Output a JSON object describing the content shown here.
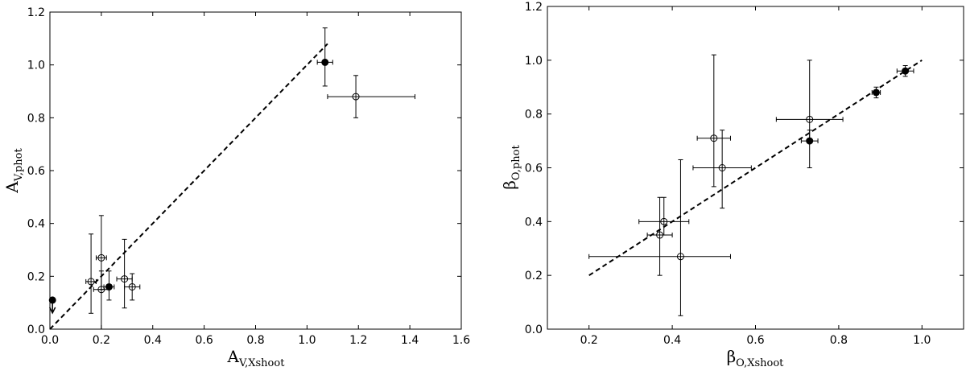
{
  "chart_data": [
    {
      "type": "scatter",
      "xlabel_main": "A",
      "xlabel_sub": "V,Xshoot",
      "ylabel_main": "A",
      "ylabel_sub": "V,phot",
      "xlim": [
        0.0,
        1.6
      ],
      "ylim": [
        0.0,
        1.2
      ],
      "xticks": [
        "0.0",
        "0.2",
        "0.4",
        "0.6",
        "0.8",
        "1.0",
        "1.2",
        "1.4",
        "1.6"
      ],
      "yticks": [
        "0.0",
        "0.2",
        "0.4",
        "0.6",
        "0.8",
        "1.0",
        "1.2"
      ],
      "xtick_values": [
        0.0,
        0.2,
        0.4,
        0.6,
        0.8,
        1.0,
        1.2,
        1.4,
        1.6
      ],
      "ytick_values": [
        0.0,
        0.2,
        0.4,
        0.6,
        0.8,
        1.0,
        1.2
      ],
      "grid": false,
      "fit_line": {
        "x": [
          0.0,
          1.08
        ],
        "y": [
          0.0,
          1.08
        ],
        "style": "dashed"
      },
      "points": [
        {
          "x": 0.01,
          "y": 0.11,
          "filled": true,
          "upper_limit": true
        },
        {
          "x": 0.16,
          "y": 0.18,
          "xerr": 0.02,
          "yerr": [
            0.12,
            0.18
          ],
          "filled": false
        },
        {
          "x": 0.2,
          "y": 0.27,
          "xerr": 0.02,
          "yerr": [
            0.12,
            0.16
          ],
          "filled": false
        },
        {
          "x": 0.2,
          "y": 0.15,
          "xerr": 0.03,
          "yerr": [
            0.15,
            0.07
          ],
          "filled": false
        },
        {
          "x": 0.23,
          "y": 0.16,
          "xerr": 0.02,
          "yerr": [
            0.05,
            0.06
          ],
          "filled": true
        },
        {
          "x": 0.29,
          "y": 0.19,
          "xerr": 0.03,
          "yerr": [
            0.11,
            0.15
          ],
          "filled": false
        },
        {
          "x": 0.32,
          "y": 0.16,
          "xerr": 0.03,
          "yerr": [
            0.05,
            0.05
          ],
          "filled": false
        },
        {
          "x": 1.07,
          "y": 1.01,
          "xerr": 0.03,
          "yerr": [
            0.09,
            0.13
          ],
          "filled": true
        },
        {
          "x": 1.19,
          "y": 0.88,
          "xerr": [
            0.11,
            0.23
          ],
          "yerr": [
            0.08,
            0.08
          ],
          "filled": false
        }
      ]
    },
    {
      "type": "scatter",
      "xlabel_main": "β",
      "xlabel_sub": "O,Xshoot",
      "ylabel_main": "β",
      "ylabel_sub": "O,phot",
      "xlim": [
        0.1,
        1.1
      ],
      "ylim": [
        0.0,
        1.2
      ],
      "xticks": [
        "0.2",
        "0.4",
        "0.6",
        "0.8",
        "1.0"
      ],
      "yticks": [
        "0.0",
        "0.2",
        "0.4",
        "0.6",
        "0.8",
        "1.0",
        "1.2"
      ],
      "xtick_values": [
        0.2,
        0.4,
        0.6,
        0.8,
        1.0
      ],
      "ytick_values": [
        0.0,
        0.2,
        0.4,
        0.6,
        0.8,
        1.0,
        1.2
      ],
      "grid": false,
      "fit_line": {
        "x": [
          0.2,
          1.0
        ],
        "y": [
          0.2,
          1.0
        ],
        "style": "dashed"
      },
      "points": [
        {
          "x": 0.37,
          "y": 0.35,
          "xerr": 0.03,
          "yerr": [
            0.15,
            0.14
          ],
          "filled": false
        },
        {
          "x": 0.38,
          "y": 0.4,
          "xerr": 0.06,
          "yerr": [
            0.05,
            0.09
          ],
          "filled": false
        },
        {
          "x": 0.42,
          "y": 0.27,
          "xerr": [
            0.22,
            0.12
          ],
          "yerr": [
            0.22,
            0.36
          ],
          "filled": false
        },
        {
          "x": 0.5,
          "y": 0.71,
          "xerr": 0.04,
          "yerr": [
            0.18,
            0.31
          ],
          "filled": false
        },
        {
          "x": 0.52,
          "y": 0.6,
          "xerr": 0.07,
          "yerr": [
            0.15,
            0.14
          ],
          "filled": false
        },
        {
          "x": 0.73,
          "y": 0.78,
          "xerr": 0.08,
          "yerr": [
            0.08,
            0.22
          ],
          "filled": false
        },
        {
          "x": 0.73,
          "y": 0.7,
          "xerr": 0.02,
          "yerr": [
            0.1,
            0.04
          ],
          "filled": true
        },
        {
          "x": 0.89,
          "y": 0.88,
          "xerr": 0.01,
          "yerr": [
            0.02,
            0.02
          ],
          "filled": true
        },
        {
          "x": 0.96,
          "y": 0.96,
          "xerr": 0.02,
          "yerr": [
            0.02,
            0.02
          ],
          "filled": true
        }
      ]
    }
  ]
}
